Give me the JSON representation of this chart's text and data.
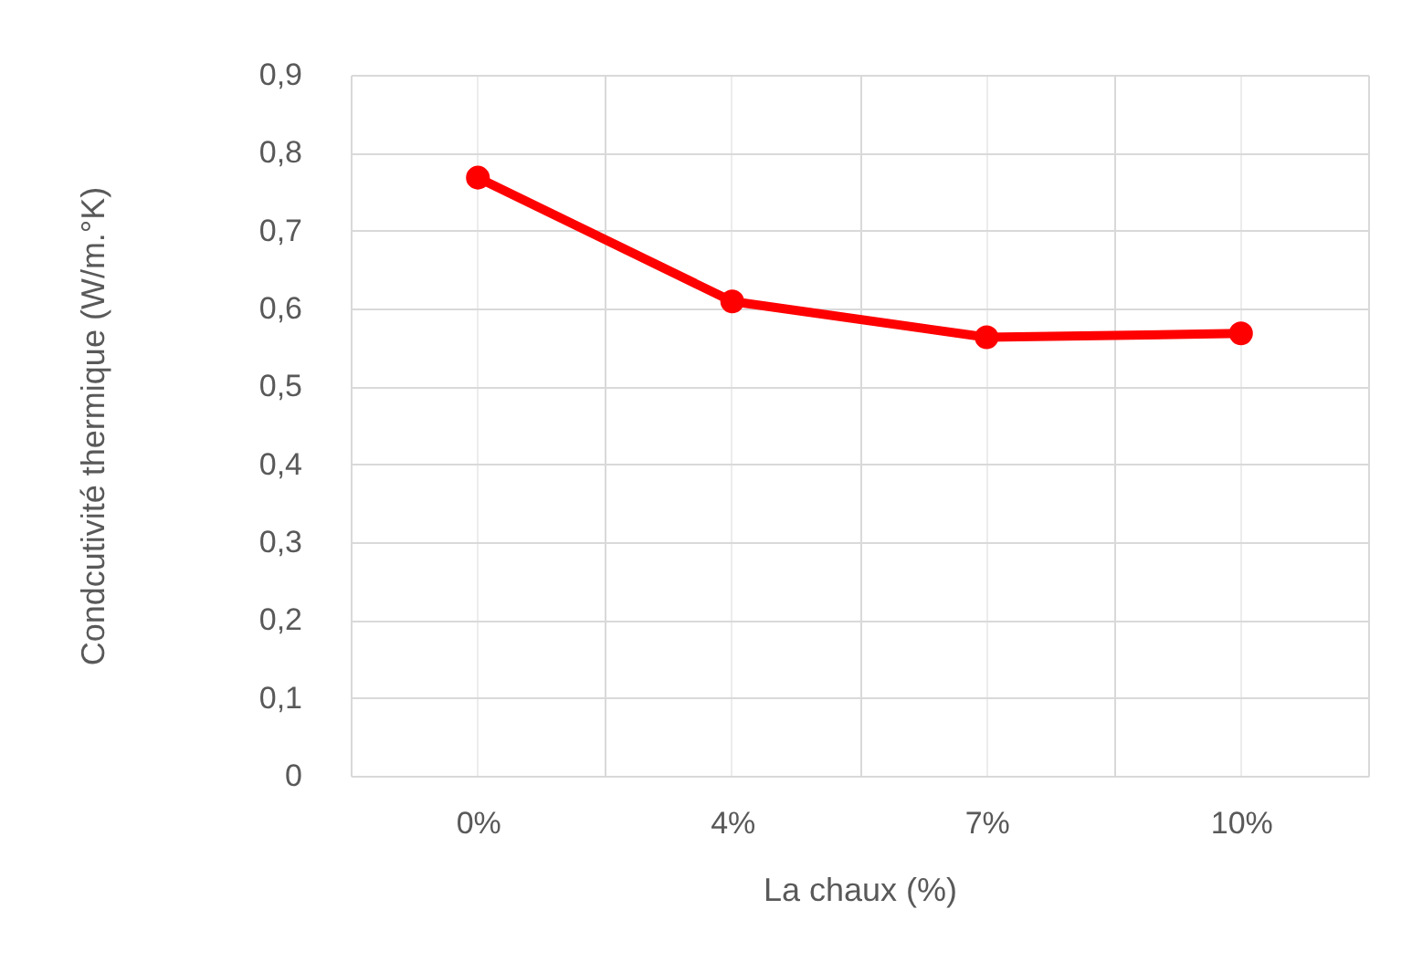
{
  "chart_data": {
    "type": "line",
    "xlabel": "La chaux (%)",
    "ylabel": "Condcutivité thermique (W/m.°K)",
    "categories": [
      "0%",
      "4%",
      "7%",
      "10%"
    ],
    "series": [
      {
        "color": "#ff0000",
        "values": [
          0.768,
          0.609,
          0.563,
          0.568
        ]
      }
    ],
    "ylim": [
      0,
      0.9
    ],
    "yticks": [
      0,
      {
        "value": 0.1,
        "label": "0,1"
      },
      {
        "value": 0.2,
        "label": "0,2"
      },
      {
        "value": 0.3,
        "label": "0,3"
      },
      {
        "value": 0.4,
        "label": "0,4"
      },
      {
        "value": 0.5,
        "label": "0,5"
      },
      {
        "value": 0.6,
        "label": "0,6"
      },
      {
        "value": 0.7,
        "label": "0,7"
      },
      {
        "value": 0.8,
        "label": "0,8"
      },
      {
        "value": 0.9,
        "label": "0,9"
      }
    ],
    "grid": true,
    "marker": "circle",
    "line_style": "solid"
  }
}
